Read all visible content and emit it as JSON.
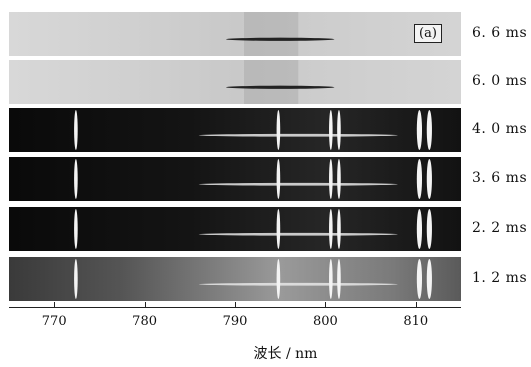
{
  "figure": {
    "panel_tag": "(a)",
    "xlabel": "波长 / nm",
    "x_range_nm": [
      765,
      815
    ],
    "ticks": [
      770,
      780,
      790,
      800,
      810
    ],
    "strips": [
      {
        "label": "6. 6 ms",
        "background": "light"
      },
      {
        "label": "6. 0 ms",
        "background": "light"
      },
      {
        "label": "4. 0 ms",
        "background": "dark"
      },
      {
        "label": "3. 6 ms",
        "background": "dark"
      },
      {
        "label": "2. 2 ms",
        "background": "dark"
      },
      {
        "label": "1. 2 ms",
        "background": "dark"
      }
    ],
    "emission_lines_nm": [
      772.4,
      794.8,
      800.6,
      801.5,
      810.4,
      811.5
    ]
  }
}
